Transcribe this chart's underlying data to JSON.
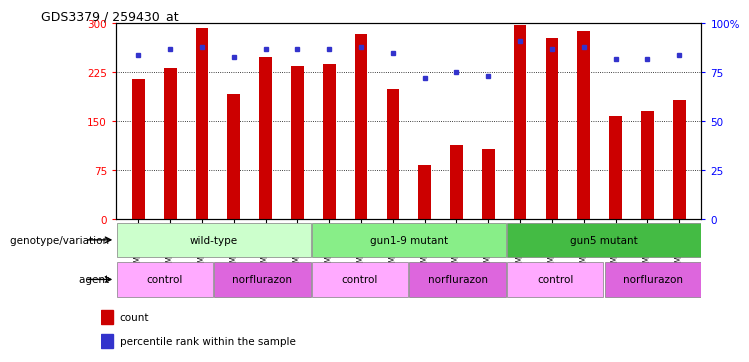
{
  "title": "GDS3379 / 259430_at",
  "samples": [
    "GSM323075",
    "GSM323076",
    "GSM323077",
    "GSM323078",
    "GSM323079",
    "GSM323080",
    "GSM323081",
    "GSM323082",
    "GSM323083",
    "GSM323084",
    "GSM323085",
    "GSM323086",
    "GSM323087",
    "GSM323088",
    "GSM323089",
    "GSM323090",
    "GSM323091",
    "GSM323092"
  ],
  "counts": [
    215,
    232,
    293,
    192,
    248,
    235,
    237,
    283,
    200,
    83,
    113,
    108,
    298,
    278,
    288,
    158,
    165,
    182
  ],
  "percentile_ranks": [
    84,
    87,
    88,
    83,
    87,
    87,
    87,
    88,
    85,
    72,
    75,
    73,
    91,
    87,
    88,
    82,
    82,
    84
  ],
  "ylim_left": [
    0,
    300
  ],
  "ylim_right": [
    0,
    100
  ],
  "yticks_left": [
    0,
    75,
    150,
    225,
    300
  ],
  "yticks_right": [
    0,
    25,
    50,
    75,
    100
  ],
  "ytick_labels_right": [
    "0",
    "25",
    "50",
    "75",
    "100%"
  ],
  "bar_color": "#CC0000",
  "dot_color": "#3333CC",
  "genotype_groups": [
    {
      "label": "wild-type",
      "start": 0,
      "end": 6,
      "color": "#CCFFCC"
    },
    {
      "label": "gun1-9 mutant",
      "start": 6,
      "end": 12,
      "color": "#88EE88"
    },
    {
      "label": "gun5 mutant",
      "start": 12,
      "end": 18,
      "color": "#44BB44"
    }
  ],
  "agent_groups": [
    {
      "label": "control",
      "start": 0,
      "end": 3,
      "color": "#FFAAFF"
    },
    {
      "label": "norflurazon",
      "start": 3,
      "end": 6,
      "color": "#DD66DD"
    },
    {
      "label": "control",
      "start": 6,
      "end": 9,
      "color": "#FFAAFF"
    },
    {
      "label": "norflurazon",
      "start": 9,
      "end": 12,
      "color": "#DD66DD"
    },
    {
      "label": "control",
      "start": 12,
      "end": 15,
      "color": "#FFAAFF"
    },
    {
      "label": "norflurazon",
      "start": 15,
      "end": 18,
      "color": "#DD66DD"
    }
  ],
  "row_label_genotype": "genotype/variation",
  "row_label_agent": "agent",
  "bar_width": 0.4
}
